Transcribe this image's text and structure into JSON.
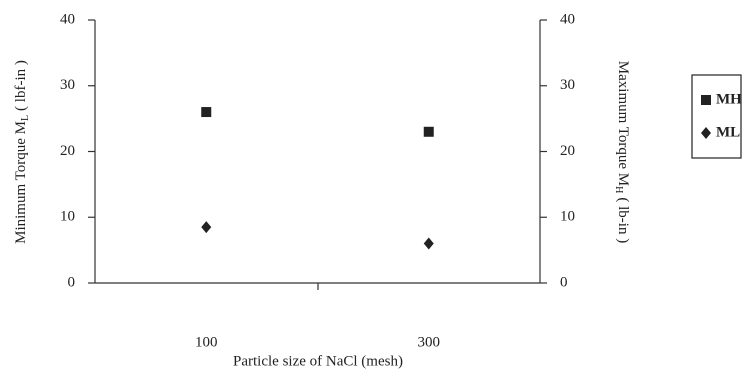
{
  "chart_data": {
    "type": "scatter",
    "categories": [
      "100",
      "300"
    ],
    "x_label": "Particle size of NaCl (mesh)",
    "y_label": {
      "text": "Minimum Torque M",
      "sub": "L",
      "unit": "( lbf-in )"
    },
    "y2_label": {
      "text": "Maximum Torque M",
      "sub": "H",
      "unit": "( lb-in )"
    },
    "ylim": [
      0,
      40
    ],
    "yticks": [
      0,
      10,
      20,
      30,
      40
    ],
    "y2lim": [
      0,
      40
    ],
    "y2ticks": [
      0,
      10,
      20,
      30,
      40
    ],
    "series": [
      {
        "name": "MH",
        "color": "#222222",
        "marker": "square",
        "axis": "y2",
        "values": [
          26,
          23
        ]
      },
      {
        "name": "ML",
        "color": "#222222",
        "marker": "diamond",
        "values": [
          8.5,
          6
        ]
      }
    ],
    "legend": "right"
  }
}
